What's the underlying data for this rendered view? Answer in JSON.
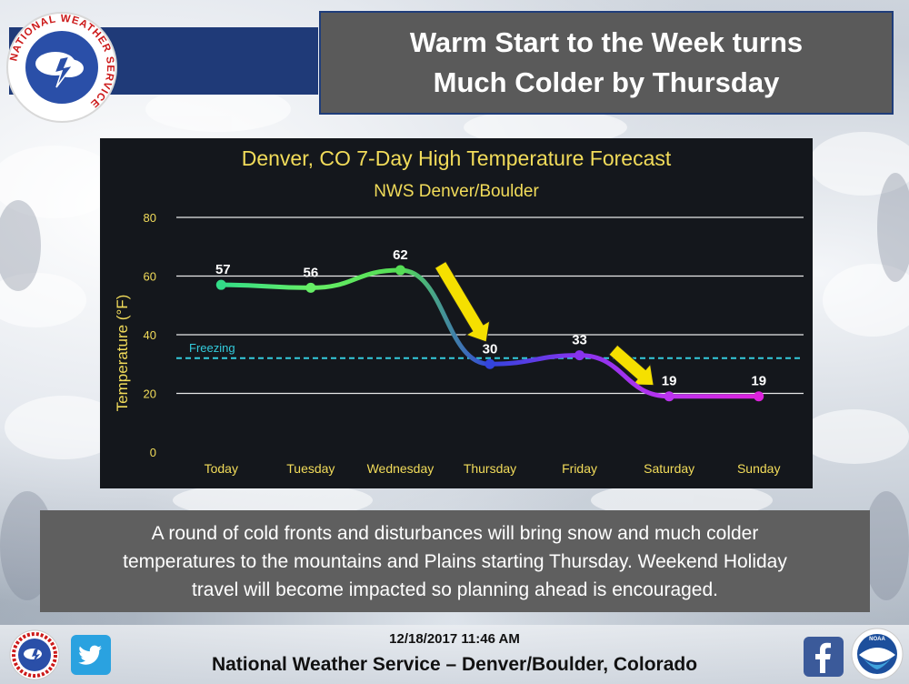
{
  "headline": {
    "line1": "Warm Start to the Week turns",
    "line2": "Much Colder by Thursday"
  },
  "logo": {
    "ring_text": "NATIONAL WEATHER SERVICE"
  },
  "chart_data": {
    "type": "line",
    "title": "Denver, CO 7-Day High Temperature Forecast",
    "subtitle": "NWS Denver/Boulder",
    "xlabel": "",
    "ylabel": "Temperature (°F)",
    "categories": [
      "Today",
      "Tuesday",
      "Wednesday",
      "Thursday",
      "Friday",
      "Saturday",
      "Sunday"
    ],
    "values": [
      57,
      56,
      62,
      30,
      33,
      19,
      19
    ],
    "value_labels": [
      "57",
      "56",
      "62",
      "30",
      "33",
      "19",
      "19"
    ],
    "ylim": [
      0,
      80
    ],
    "yticks": [
      0,
      20,
      40,
      60,
      80
    ],
    "grid": true,
    "reference_line": {
      "label": "Freezing",
      "value": 32,
      "color": "#33ccdd"
    },
    "line_colors": [
      "#33dd88",
      "#66ee66",
      "#55dd55",
      "#3344dd",
      "#8833ee",
      "#bb33ee",
      "#dd22dd"
    ],
    "arrows_color": "#f5e000"
  },
  "caption": {
    "line1": "A round of cold fronts and disturbances will bring snow and much colder",
    "line2": "temperatures to the mountains and Plains starting Thursday. Weekend Holiday",
    "line3": "travel will become impacted so planning ahead is encouraged."
  },
  "footer": {
    "datetime": "12/18/2017 11:46 AM",
    "organization": "National Weather Service – Denver/Boulder, Colorado"
  }
}
